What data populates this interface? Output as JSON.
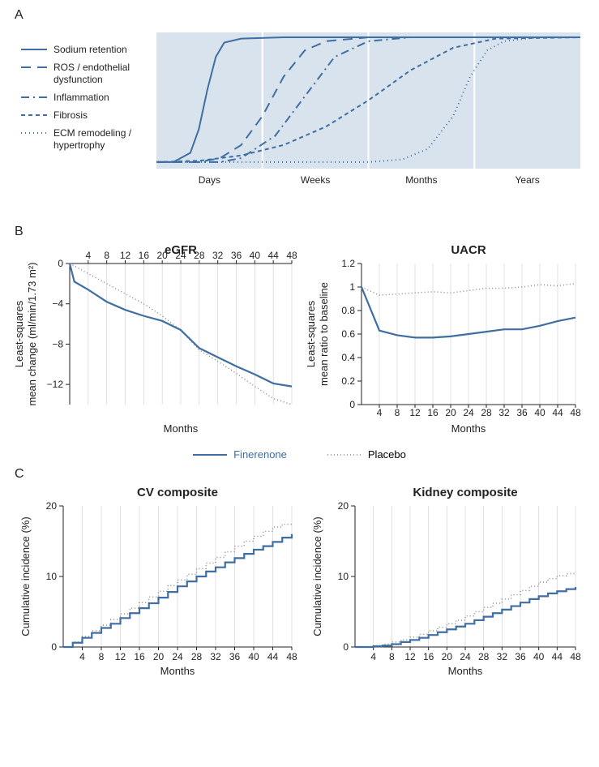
{
  "colors": {
    "finerenone": "#3f6ea3",
    "placebo": "#888888",
    "panel_a_bg": "#d8e3ee",
    "panel_a_stroke": "#ffffff",
    "grid": "#cccccc",
    "axis": "#222222",
    "text": "#222222",
    "bg": "#ffffff"
  },
  "panel_a": {
    "label": "A",
    "xticks": [
      "Days",
      "Weeks",
      "Months",
      "Years"
    ],
    "legend": [
      {
        "label": "Sodium retention",
        "dash": "solid",
        "desc": ""
      },
      {
        "label": "ROS / endothelial",
        "dash": "longdash",
        "desc": "dysfunction"
      },
      {
        "label": "Inflammation",
        "dash": "dashdot",
        "desc": ""
      },
      {
        "label": "Fibrosis",
        "dash": "shortdash",
        "desc": ""
      },
      {
        "label": "ECM remodeling /",
        "dash": "dot",
        "desc": "hypertrophy"
      }
    ],
    "curves": {
      "sodium": [
        [
          0,
          0.05
        ],
        [
          0.04,
          0.05
        ],
        [
          0.08,
          0.12
        ],
        [
          0.1,
          0.3
        ],
        [
          0.12,
          0.6
        ],
        [
          0.14,
          0.85
        ],
        [
          0.16,
          0.96
        ],
        [
          0.2,
          0.99
        ],
        [
          0.3,
          1.0
        ],
        [
          1.0,
          1.0
        ]
      ],
      "ros": [
        [
          0,
          0.05
        ],
        [
          0.1,
          0.05
        ],
        [
          0.15,
          0.08
        ],
        [
          0.2,
          0.18
        ],
        [
          0.25,
          0.4
        ],
        [
          0.3,
          0.7
        ],
        [
          0.35,
          0.9
        ],
        [
          0.4,
          0.97
        ],
        [
          0.5,
          1.0
        ],
        [
          1.0,
          1.0
        ]
      ],
      "inflam": [
        [
          0,
          0.05
        ],
        [
          0.15,
          0.05
        ],
        [
          0.2,
          0.08
        ],
        [
          0.28,
          0.25
        ],
        [
          0.35,
          0.55
        ],
        [
          0.42,
          0.85
        ],
        [
          0.5,
          0.97
        ],
        [
          0.6,
          1.0
        ],
        [
          1.0,
          1.0
        ]
      ],
      "fibrosis": [
        [
          0,
          0.05
        ],
        [
          0.1,
          0.06
        ],
        [
          0.2,
          0.1
        ],
        [
          0.3,
          0.18
        ],
        [
          0.4,
          0.32
        ],
        [
          0.5,
          0.52
        ],
        [
          0.6,
          0.75
        ],
        [
          0.7,
          0.92
        ],
        [
          0.8,
          0.99
        ],
        [
          1.0,
          1.0
        ]
      ],
      "ecm": [
        [
          0,
          0.05
        ],
        [
          0.5,
          0.05
        ],
        [
          0.58,
          0.07
        ],
        [
          0.64,
          0.15
        ],
        [
          0.7,
          0.4
        ],
        [
          0.74,
          0.7
        ],
        [
          0.78,
          0.9
        ],
        [
          0.82,
          0.97
        ],
        [
          0.9,
          1.0
        ],
        [
          1.0,
          1.0
        ]
      ]
    },
    "dash_patterns": {
      "solid": "",
      "longdash": "12 8",
      "dashdot": "10 5 2 5",
      "shortdash": "5 4",
      "dot": "1 4"
    }
  },
  "panel_b": {
    "label": "B",
    "x_ticks": [
      4,
      8,
      12,
      16,
      20,
      24,
      28,
      32,
      36,
      40,
      44,
      48
    ],
    "x_min": 0,
    "x_max": 48,
    "x_label": "Months",
    "egfr": {
      "title": "eGFR",
      "y_label_line1": "Least-squares",
      "y_label_line2": "mean change (ml/min/1.73 m²)",
      "y_min": -14,
      "y_max": 0,
      "y_ticks": [
        0,
        -4,
        -8,
        -12
      ],
      "finerenone": [
        [
          0,
          0
        ],
        [
          1,
          -1.8
        ],
        [
          4,
          -2.6
        ],
        [
          8,
          -3.8
        ],
        [
          12,
          -4.6
        ],
        [
          16,
          -5.2
        ],
        [
          20,
          -5.7
        ],
        [
          24,
          -6.6
        ],
        [
          28,
          -8.4
        ],
        [
          32,
          -9.3
        ],
        [
          36,
          -10.2
        ],
        [
          40,
          -11.0
        ],
        [
          44,
          -11.9
        ],
        [
          48,
          -12.2
        ]
      ],
      "placebo": [
        [
          0,
          0
        ],
        [
          4,
          -1.0
        ],
        [
          8,
          -2.0
        ],
        [
          12,
          -3.0
        ],
        [
          16,
          -4.0
        ],
        [
          20,
          -5.2
        ],
        [
          24,
          -6.6
        ],
        [
          28,
          -8.6
        ],
        [
          32,
          -9.7
        ],
        [
          36,
          -10.9
        ],
        [
          40,
          -12.2
        ],
        [
          44,
          -13.4
        ],
        [
          48,
          -14.0
        ]
      ]
    },
    "uacr": {
      "title": "UACR",
      "y_label_line1": "Least-squares",
      "y_label_line2": "mean ratio to baseline",
      "y_min": 0,
      "y_max": 1.2,
      "y_ticks": [
        0,
        0.2,
        0.4,
        0.6,
        0.8,
        1.0,
        1.2
      ],
      "finerenone": [
        [
          0,
          1.0
        ],
        [
          4,
          0.63
        ],
        [
          8,
          0.59
        ],
        [
          12,
          0.57
        ],
        [
          16,
          0.57
        ],
        [
          20,
          0.58
        ],
        [
          24,
          0.6
        ],
        [
          28,
          0.62
        ],
        [
          32,
          0.64
        ],
        [
          36,
          0.64
        ],
        [
          40,
          0.67
        ],
        [
          44,
          0.71
        ],
        [
          48,
          0.74
        ]
      ],
      "placebo": [
        [
          0,
          1.0
        ],
        [
          4,
          0.93
        ],
        [
          8,
          0.94
        ],
        [
          12,
          0.95
        ],
        [
          16,
          0.96
        ],
        [
          20,
          0.95
        ],
        [
          24,
          0.97
        ],
        [
          28,
          0.99
        ],
        [
          32,
          0.99
        ],
        [
          36,
          1.0
        ],
        [
          40,
          1.02
        ],
        [
          44,
          1.01
        ],
        [
          48,
          1.03
        ]
      ]
    },
    "legend_labels": {
      "finerenone": "Finerenone",
      "placebo": "Placebo"
    }
  },
  "panel_c": {
    "label": "C",
    "x_ticks": [
      4,
      8,
      12,
      16,
      20,
      24,
      28,
      32,
      36,
      40,
      44,
      48
    ],
    "x_min": 0,
    "x_max": 48,
    "x_label": "Months",
    "cv": {
      "title": "CV composite",
      "y_label": "Cumulative incidence (%)",
      "y_min": 0,
      "y_max": 20,
      "y_ticks": [
        0,
        10,
        20
      ],
      "finerenone_pts": [
        [
          0,
          0.0
        ],
        [
          2,
          0.6
        ],
        [
          4,
          1.3
        ],
        [
          6,
          2.0
        ],
        [
          8,
          2.7
        ],
        [
          10,
          3.3
        ],
        [
          12,
          4.1
        ],
        [
          14,
          4.8
        ],
        [
          16,
          5.5
        ],
        [
          18,
          6.2
        ],
        [
          20,
          7.0
        ],
        [
          22,
          7.8
        ],
        [
          24,
          8.6
        ],
        [
          26,
          9.3
        ],
        [
          28,
          10.0
        ],
        [
          30,
          10.7
        ],
        [
          32,
          11.3
        ],
        [
          34,
          12.0
        ],
        [
          36,
          12.6
        ],
        [
          38,
          13.2
        ],
        [
          40,
          13.8
        ],
        [
          42,
          14.3
        ],
        [
          44,
          14.9
        ],
        [
          46,
          15.5
        ],
        [
          48,
          16.0
        ]
      ],
      "placebo_pts": [
        [
          0,
          0.0
        ],
        [
          2,
          0.7
        ],
        [
          4,
          1.5
        ],
        [
          6,
          2.3
        ],
        [
          8,
          3.1
        ],
        [
          10,
          3.9
        ],
        [
          12,
          4.7
        ],
        [
          14,
          5.5
        ],
        [
          16,
          6.3
        ],
        [
          18,
          7.1
        ],
        [
          20,
          7.9
        ],
        [
          22,
          8.7
        ],
        [
          24,
          9.5
        ],
        [
          26,
          10.3
        ],
        [
          28,
          11.1
        ],
        [
          30,
          11.9
        ],
        [
          32,
          12.7
        ],
        [
          34,
          13.5
        ],
        [
          36,
          14.3
        ],
        [
          38,
          15.0
        ],
        [
          40,
          15.7
        ],
        [
          42,
          16.4
        ],
        [
          44,
          17.0
        ],
        [
          46,
          17.4
        ],
        [
          48,
          17.7
        ]
      ]
    },
    "kidney": {
      "title": "Kidney composite",
      "y_label": "Cumulative incidence (%)",
      "y_min": 0,
      "y_max": 20,
      "y_ticks": [
        0,
        10,
        20
      ],
      "finerenone_pts": [
        [
          0,
          0.0
        ],
        [
          2,
          0.0
        ],
        [
          4,
          0.1
        ],
        [
          6,
          0.2
        ],
        [
          8,
          0.4
        ],
        [
          10,
          0.7
        ],
        [
          12,
          1.0
        ],
        [
          14,
          1.3
        ],
        [
          16,
          1.7
        ],
        [
          18,
          2.1
        ],
        [
          20,
          2.5
        ],
        [
          22,
          2.9
        ],
        [
          24,
          3.3
        ],
        [
          26,
          3.8
        ],
        [
          28,
          4.3
        ],
        [
          30,
          4.8
        ],
        [
          32,
          5.3
        ],
        [
          34,
          5.8
        ],
        [
          36,
          6.3
        ],
        [
          38,
          6.8
        ],
        [
          40,
          7.2
        ],
        [
          42,
          7.6
        ],
        [
          44,
          7.9
        ],
        [
          46,
          8.2
        ],
        [
          48,
          8.5
        ]
      ],
      "placebo_pts": [
        [
          0,
          0.0
        ],
        [
          2,
          0.0
        ],
        [
          4,
          0.2
        ],
        [
          6,
          0.4
        ],
        [
          8,
          0.7
        ],
        [
          10,
          1.0
        ],
        [
          12,
          1.4
        ],
        [
          14,
          1.8
        ],
        [
          16,
          2.3
        ],
        [
          18,
          2.8
        ],
        [
          20,
          3.3
        ],
        [
          22,
          3.8
        ],
        [
          24,
          4.4
        ],
        [
          26,
          5.0
        ],
        [
          28,
          5.6
        ],
        [
          30,
          6.2
        ],
        [
          32,
          6.8
        ],
        [
          34,
          7.4
        ],
        [
          36,
          8.0
        ],
        [
          38,
          8.6
        ],
        [
          40,
          9.2
        ],
        [
          42,
          9.7
        ],
        [
          44,
          10.1
        ],
        [
          46,
          10.4
        ],
        [
          48,
          10.6
        ]
      ]
    }
  }
}
